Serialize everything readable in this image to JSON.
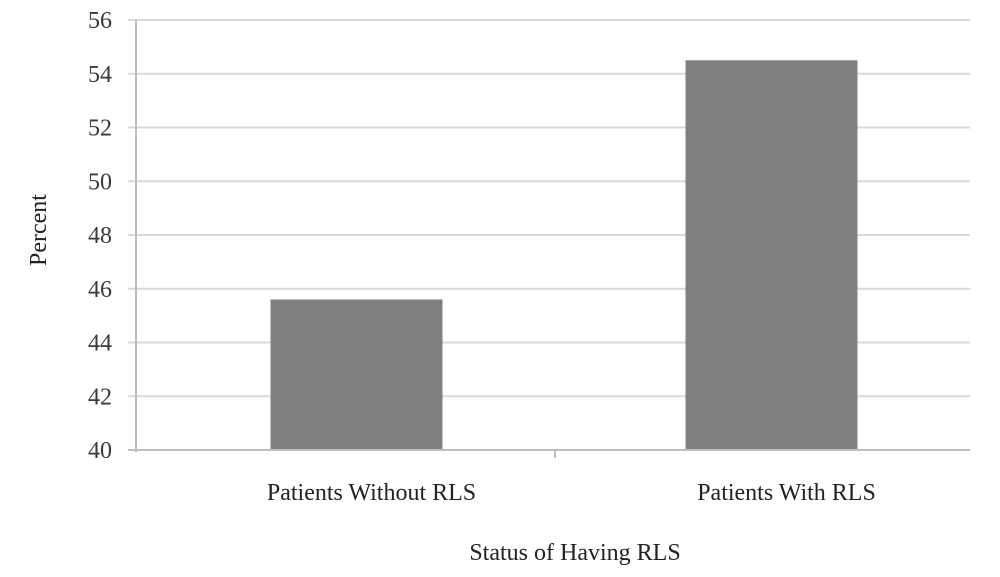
{
  "chart_data": {
    "type": "bar",
    "title": "",
    "xlabel": "Status of Having RLS",
    "ylabel": "Percent",
    "categories": [
      "Patients Without RLS",
      "Patients With RLS"
    ],
    "values": [
      45.6,
      54.5
    ],
    "ylim": [
      40,
      56
    ],
    "yticks": [
      40,
      42,
      44,
      46,
      48,
      50,
      52,
      54,
      56
    ],
    "grid": true,
    "legend": null,
    "bar_color": "#808080",
    "grid_color": "#d9d9d9"
  }
}
